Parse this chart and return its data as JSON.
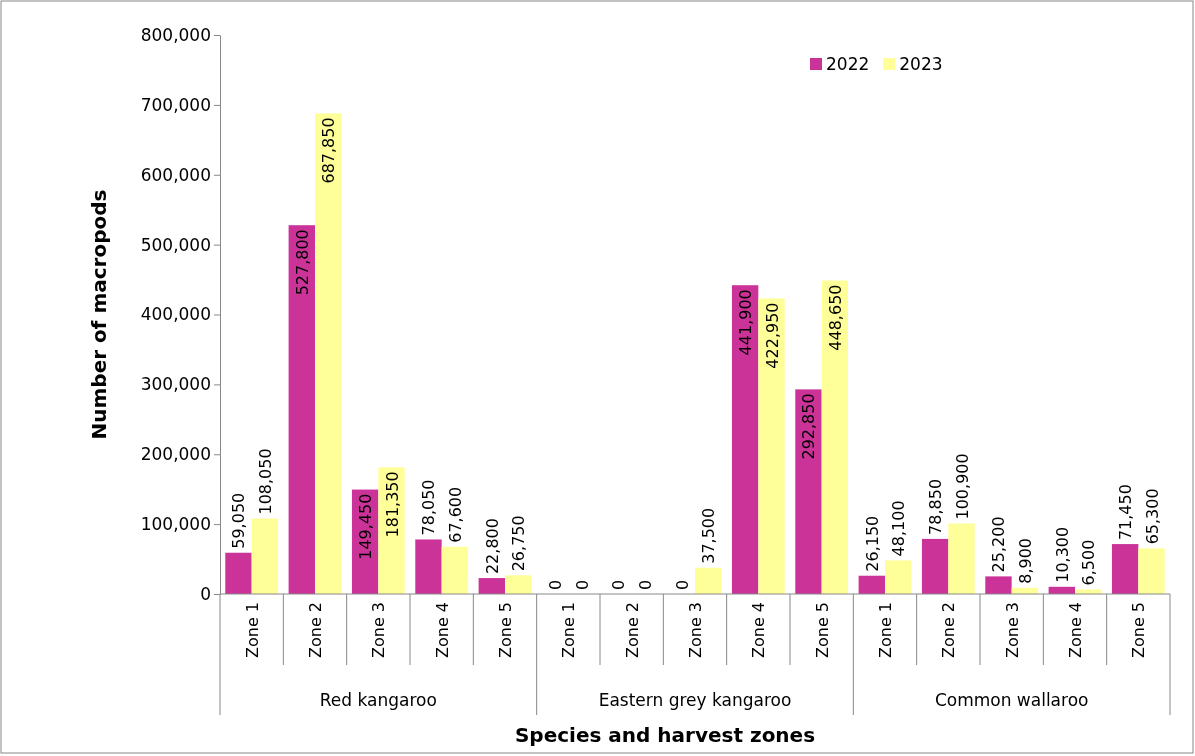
{
  "chart_data": {
    "type": "bar",
    "xlabel": "Species and harvest zones",
    "ylabel": "Number of macropods",
    "categories": [
      "Zone 1",
      "Zone 2",
      "Zone 3",
      "Zone 4",
      "Zone 5",
      "Zone 1",
      "Zone 2",
      "Zone 3",
      "Zone 4",
      "Zone 5",
      "Zone 1",
      "Zone 2",
      "Zone 3",
      "Zone 4",
      "Zone 5"
    ],
    "series": [
      {
        "name": "2022",
        "color": "#cc3399",
        "values": [
          59050,
          527800,
          149450,
          78050,
          22800,
          0,
          0,
          0,
          441900,
          292850,
          26150,
          78850,
          25200,
          10300,
          71450
        ],
        "value_labels": [
          "59,050",
          "527,800",
          "149,450",
          "78,050",
          "22,800",
          "0",
          "0",
          "0",
          "441,900",
          "292,850",
          "26,150",
          "78,850",
          "25,200",
          "10,300",
          "71,450"
        ]
      },
      {
        "name": "2023",
        "color": "#ffff99",
        "values": [
          108050,
          687850,
          181350,
          67600,
          26750,
          0,
          0,
          37500,
          422950,
          448650,
          48100,
          100900,
          8900,
          6500,
          65300
        ],
        "value_labels": [
          "108,050",
          "687,850",
          "181,350",
          "67,600",
          "26,750",
          "0",
          "0",
          "37,500",
          "422,950",
          "448,650",
          "48,100",
          "100,900",
          "8,900",
          "6,500",
          "65,300"
        ]
      }
    ],
    "annotations": [
      "Red kangaroo",
      "Eastern grey kangaroo",
      "Common wallaroo"
    ],
    "ylim": [
      0,
      800000
    ],
    "yticks": [
      {
        "value": 0,
        "label": "0"
      },
      {
        "value": 100000,
        "label": "100,000"
      },
      {
        "value": 200000,
        "label": "200,000"
      },
      {
        "value": 300000,
        "label": "300,000"
      },
      {
        "value": 400000,
        "label": "400,000"
      },
      {
        "value": 500000,
        "label": "500,000"
      },
      {
        "value": 600000,
        "label": "600,000"
      },
      {
        "value": 700000,
        "label": "700,000"
      },
      {
        "value": 800000,
        "label": "800,000"
      }
    ],
    "legend": "top right"
  }
}
